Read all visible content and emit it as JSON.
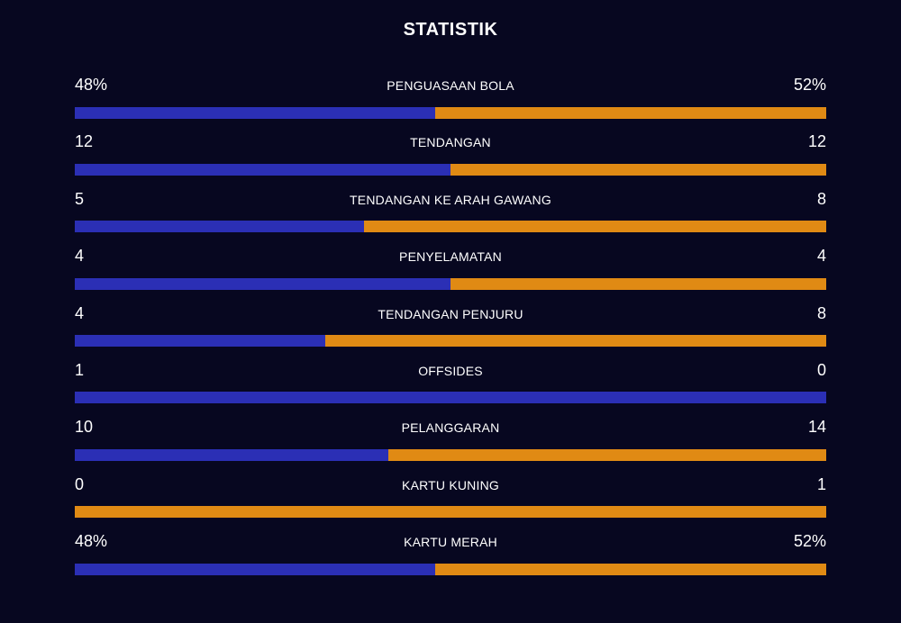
{
  "title": "STATISTIK",
  "colors": {
    "background": "#070720",
    "home": "#2b2fb5",
    "away": "#e08a14"
  },
  "stats": [
    {
      "label": "PENGUASAAN BOLA",
      "home": "48%",
      "away": "52%",
      "home_share": 0.48
    },
    {
      "label": "TENDANGAN",
      "home": "12",
      "away": "12",
      "home_share": 0.5
    },
    {
      "label": "TENDANGAN KE ARAH GAWANG",
      "home": "5",
      "away": "8",
      "home_share": 0.385
    },
    {
      "label": "PENYELAMATAN",
      "home": "4",
      "away": "4",
      "home_share": 0.5
    },
    {
      "label": "TENDANGAN PENJURU",
      "home": "4",
      "away": "8",
      "home_share": 0.333
    },
    {
      "label": "OFFSIDES",
      "home": "1",
      "away": "0",
      "home_share": 1.0
    },
    {
      "label": "PELANGGARAN",
      "home": "10",
      "away": "14",
      "home_share": 0.417
    },
    {
      "label": "KARTU KUNING",
      "home": "0",
      "away": "1",
      "home_share": 0.0
    },
    {
      "label": "KARTU MERAH",
      "home": "48%",
      "away": "52%",
      "home_share": 0.48
    }
  ]
}
